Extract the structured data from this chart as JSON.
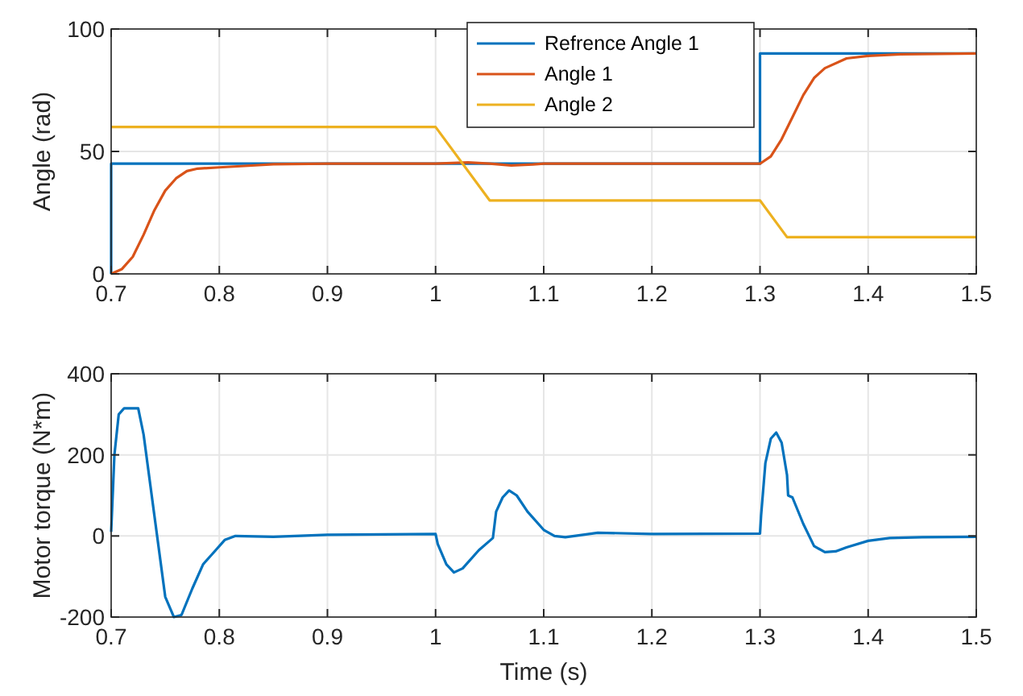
{
  "chart_data": [
    {
      "type": "line",
      "ylabel": "Angle (rad)",
      "xlim": [
        0.7,
        1.5
      ],
      "xticks": [
        0.7,
        0.8,
        0.9,
        1,
        1.1,
        1.2,
        1.3,
        1.4,
        1.5
      ],
      "ylim": [
        0,
        100
      ],
      "yticks": [
        0,
        50,
        100
      ],
      "grid": true,
      "legend": "top right",
      "series": [
        {
          "name": "Refrence Angle 1",
          "color": "#0072bd",
          "x": [
            0.7,
            0.7,
            1.3,
            1.3,
            1.5
          ],
          "values": [
            0,
            45,
            45,
            90,
            90
          ]
        },
        {
          "name": "Angle 1",
          "color": "#d95319",
          "x": [
            0.7,
            0.71,
            0.72,
            0.73,
            0.74,
            0.75,
            0.76,
            0.77,
            0.78,
            0.8,
            0.82,
            0.85,
            0.9,
            1.0,
            1.03,
            1.05,
            1.07,
            1.09,
            1.1,
            1.2,
            1.3,
            1.31,
            1.32,
            1.33,
            1.34,
            1.35,
            1.36,
            1.38,
            1.4,
            1.43,
            1.5
          ],
          "values": [
            0,
            2,
            7,
            16,
            26,
            34,
            39,
            42,
            43,
            43.5,
            44,
            44.8,
            45,
            45,
            45.5,
            45,
            44.3,
            44.7,
            45,
            45,
            45,
            48,
            55,
            64,
            73,
            80,
            84,
            88,
            89,
            89.7,
            90
          ]
        },
        {
          "name": "Angle 2",
          "color": "#edb120",
          "x": [
            0.7,
            1.0,
            1.05,
            1.3,
            1.325,
            1.5
          ],
          "values": [
            60,
            60,
            30,
            30,
            15,
            15
          ]
        }
      ]
    },
    {
      "type": "line",
      "xlabel": "Time (s)",
      "ylabel": "Motor torque (N*m)",
      "xlim": [
        0.7,
        1.5
      ],
      "xticks": [
        0.7,
        0.8,
        0.9,
        1,
        1.1,
        1.2,
        1.3,
        1.4,
        1.5
      ],
      "ylim": [
        -200,
        400
      ],
      "yticks": [
        -200,
        0,
        200,
        400
      ],
      "grid": true,
      "series": [
        {
          "color": "#0072bd",
          "x": [
            0.7,
            0.703,
            0.707,
            0.712,
            0.725,
            0.73,
            0.74,
            0.75,
            0.758,
            0.765,
            0.775,
            0.785,
            0.795,
            0.805,
            0.815,
            0.85,
            0.9,
            1.0,
            1.002,
            1.01,
            1.017,
            1.025,
            1.04,
            1.05,
            1.053,
            1.056,
            1.062,
            1.068,
            1.075,
            1.085,
            1.1,
            1.11,
            1.12,
            1.15,
            1.2,
            1.3,
            1.301,
            1.305,
            1.31,
            1.315,
            1.32,
            1.325,
            1.326,
            1.33,
            1.34,
            1.35,
            1.36,
            1.37,
            1.38,
            1.4,
            1.42,
            1.45,
            1.5
          ],
          "values": [
            10,
            200,
            300,
            315,
            315,
            250,
            50,
            -150,
            -200,
            -195,
            -130,
            -70,
            -40,
            -10,
            0,
            -2,
            3,
            5,
            -20,
            -70,
            -90,
            -80,
            -35,
            -12,
            -5,
            60,
            95,
            112,
            100,
            60,
            15,
            0,
            -3,
            8,
            5,
            6,
            50,
            180,
            240,
            255,
            230,
            150,
            100,
            95,
            30,
            -25,
            -40,
            -38,
            -28,
            -12,
            -5,
            -3,
            -2
          ]
        }
      ]
    }
  ]
}
